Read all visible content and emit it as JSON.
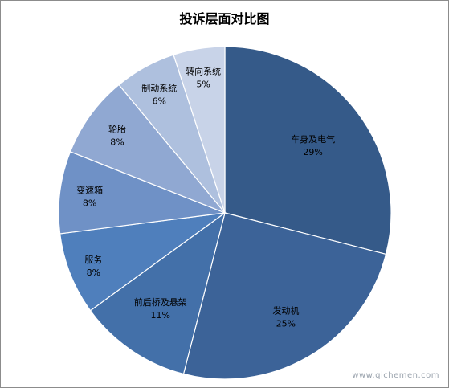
{
  "chart_data": {
    "type": "pie",
    "title": "投诉层面对比图",
    "start_angle_deg": 0,
    "direction": "clockwise",
    "slices": [
      {
        "label": "车身及电气",
        "value": 29,
        "pct_label": "29%",
        "color": "#355a89"
      },
      {
        "label": "发动机",
        "value": 25,
        "pct_label": "25%",
        "color": "#3c6398"
      },
      {
        "label": "前后桥及悬架",
        "value": 11,
        "pct_label": "11%",
        "color": "#4370a9"
      },
      {
        "label": "服务",
        "value": 8,
        "pct_label": "8%",
        "color": "#4f7fbc"
      },
      {
        "label": "变速箱",
        "value": 8,
        "pct_label": "8%",
        "color": "#6f91c6"
      },
      {
        "label": "轮胎",
        "value": 8,
        "pct_label": "8%",
        "color": "#90a8d2"
      },
      {
        "label": "制动系统",
        "value": 6,
        "pct_label": "6%",
        "color": "#aec0de"
      },
      {
        "label": "转向系统",
        "value": 5,
        "pct_label": "5%",
        "color": "#c8d3e8"
      }
    ]
  },
  "watermark": "www.qichemen.com"
}
